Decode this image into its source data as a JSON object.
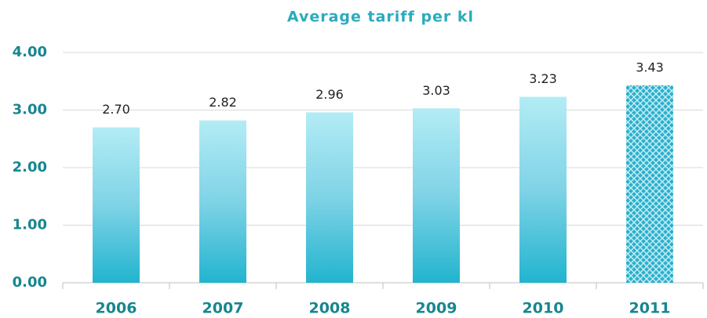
{
  "chart_data": {
    "type": "bar",
    "title": "Average tariff per kl",
    "categories": [
      "2006",
      "2007",
      "2008",
      "2009",
      "2010",
      "2011"
    ],
    "values": [
      2.7,
      2.82,
      2.96,
      3.03,
      3.23,
      3.43
    ],
    "value_labels": [
      "2.70",
      "2.82",
      "2.96",
      "3.03",
      "3.23",
      "3.43"
    ],
    "ylim": [
      0,
      4
    ],
    "yticks": [
      {
        "value": 0,
        "label": "0.00"
      },
      {
        "value": 1,
        "label": "1.00"
      },
      {
        "value": 2,
        "label": "2.00"
      },
      {
        "value": 3,
        "label": "3.00"
      },
      {
        "value": 4,
        "label": "4.00"
      }
    ],
    "grid": true
  }
}
